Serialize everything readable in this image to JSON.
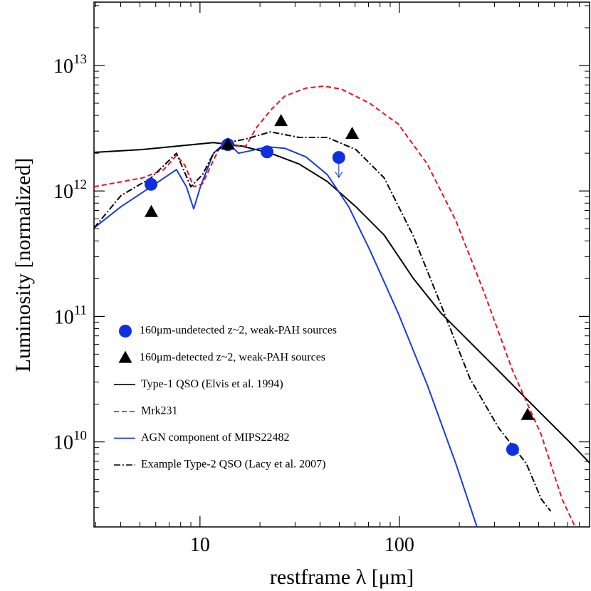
{
  "chart_data": {
    "type": "line",
    "xlabel": "restframe λ [μm]",
    "ylabel": "Luminosity [normalized]",
    "xscale": "log",
    "yscale": "log",
    "xlim": [
      2.94,
      900
    ],
    "ylim": [
      2100000000.0,
      32000000000000.0
    ],
    "xticks": [
      10,
      100
    ],
    "xminorticks": [
      3,
      4,
      5,
      6,
      7,
      8,
      9,
      20,
      30,
      40,
      50,
      60,
      70,
      80,
      90,
      200,
      300,
      400,
      500,
      600,
      700,
      800,
      900
    ],
    "yticks": [
      {
        "value": 10000000000.0,
        "label": "10",
        "exponent": "10"
      },
      {
        "value": 100000000000.0,
        "label": "10",
        "exponent": "11"
      },
      {
        "value": 1000000000000.0,
        "label": "10",
        "exponent": "12"
      },
      {
        "value": 10000000000000.0,
        "label": "10",
        "exponent": "13"
      }
    ],
    "yminorticks": [
      3000000000.0,
      4000000000.0,
      5000000000.0,
      6000000000.0,
      7000000000.0,
      8000000000.0,
      9000000000.0,
      20000000000.0,
      30000000000.0,
      40000000000.0,
      50000000000.0,
      60000000000.0,
      70000000000.0,
      80000000000.0,
      90000000000.0,
      200000000000.0,
      300000000000.0,
      400000000000.0,
      500000000000.0,
      600000000000.0,
      700000000000.0,
      800000000000.0,
      900000000000.0,
      2000000000000.0,
      3000000000000.0,
      4000000000000.0,
      5000000000000.0,
      6000000000000.0,
      7000000000000.0,
      8000000000000.0,
      9000000000000.0,
      20000000000000.0,
      30000000000000.0
    ],
    "legend": "center-left",
    "series": [
      {
        "name": "160μm-undetected z~2, weak-PAH sources",
        "type": "scatter",
        "marker": "circle",
        "color": "#1030e0",
        "x": [
          5.68,
          13.8,
          21.7,
          49.7,
          370
        ],
        "values": [
          1130000000000.0,
          2340000000000.0,
          2050000000000.0,
          1850000000000.0,
          8700000000.0
        ],
        "upper_limit": [
          false,
          false,
          false,
          true,
          false
        ]
      },
      {
        "name": "160μm-detected z~2, weak-PAH sources",
        "type": "scatter",
        "marker": "triangle",
        "color": "#000000",
        "x": [
          5.7,
          13.8,
          25.5,
          58,
          440
        ],
        "values": [
          680000000000.0,
          2340000000000.0,
          3600000000000.0,
          2850000000000.0,
          16400000000.0
        ]
      },
      {
        "name": "Type-1 QSO (Elvis et al. 1994)",
        "type": "line",
        "dash": "solid",
        "color": "#000000",
        "x": [
          2.94,
          5.14,
          7.74,
          11.7,
          16.2,
          22.6,
          31.4,
          43.5,
          60.5,
          84,
          117,
          163,
          226,
          314,
          473,
          714,
          900
        ],
        "values": [
          2030000000000.0,
          2140000000000.0,
          2280000000000.0,
          2430000000000.0,
          2280000000000.0,
          2000000000000.0,
          1640000000000.0,
          1190000000000.0,
          750000000000.0,
          445000000000.0,
          203000000000.0,
          105000000000.0,
          62400000000.0,
          37000000000.0,
          19200000000.0,
          10000000000.0,
          6800000000.0
        ]
      },
      {
        "name": "Mrk231",
        "type": "line",
        "dash": "dashed",
        "color": "#e8141e",
        "x": [
          2.94,
          5.14,
          6.58,
          7.62,
          8.4,
          9.3,
          10.3,
          11.7,
          12.9,
          15,
          17,
          19.1,
          22.6,
          26.6,
          34,
          41.7,
          51,
          71,
          99,
          138,
          192,
          266,
          370,
          515,
          655,
          762
        ],
        "values": [
          1080000000000.0,
          1270000000000.0,
          1480000000000.0,
          1920000000000.0,
          1600000000000.0,
          1080000000000.0,
          1140000000000.0,
          1760000000000.0,
          2430000000000.0,
          2280000000000.0,
          2280000000000.0,
          3160000000000.0,
          4400000000000.0,
          5700000000000.0,
          6600000000000.0,
          6850000000000.0,
          6500000000000.0,
          5000000000000.0,
          3400000000000.0,
          1640000000000.0,
          580000000000.0,
          156000000000.0,
          37000000000.0,
          11400000000.0,
          3500000000.0,
          2100000000.0
        ]
      },
      {
        "name": "AGN component of MIPS22482",
        "type": "line",
        "dash": "solid",
        "color": "#1a3be0",
        "x": [
          2.94,
          4.02,
          5.68,
          7.62,
          8.55,
          9.3,
          10.1,
          11.7,
          13.6,
          15.6,
          17.6,
          21.7,
          26.6,
          34,
          43.5,
          55.7,
          71,
          99,
          138,
          192,
          245
        ],
        "values": [
          507000000000.0,
          750000000000.0,
          1080000000000.0,
          1480000000000.0,
          1080000000000.0,
          720000000000.0,
          1110000000000.0,
          2000000000000.0,
          2500000000000.0,
          2000000000000.0,
          2080000000000.0,
          2250000000000.0,
          2190000000000.0,
          1870000000000.0,
          1350000000000.0,
          750000000000.0,
          340000000000.0,
          105000000000.0,
          28500000000.0,
          6700000000.0,
          2100000000.0
        ]
      },
      {
        "name": "Example Type-2 QSO (Lacy et al. 2007)",
        "type": "line",
        "dash": "dashdot",
        "color": "#000000",
        "x": [
          2.94,
          4.02,
          5.68,
          7.62,
          9.0,
          10.3,
          11.7,
          13.8,
          17,
          22.6,
          31.4,
          43.5,
          60.5,
          84,
          117,
          163,
          226,
          314,
          434,
          515,
          575
        ],
        "values": [
          507000000000.0,
          920000000000.0,
          1270000000000.0,
          2000000000000.0,
          1080000000000.0,
          1350000000000.0,
          2000000000000.0,
          2430000000000.0,
          2600000000000.0,
          2960000000000.0,
          2670000000000.0,
          2670000000000.0,
          2140000000000.0,
          1270000000000.0,
          445000000000.0,
          120000000000.0,
          32000000000.0,
          13000000000.0,
          6700000000.0,
          3500000000.0,
          2800000000.0
        ]
      }
    ]
  }
}
